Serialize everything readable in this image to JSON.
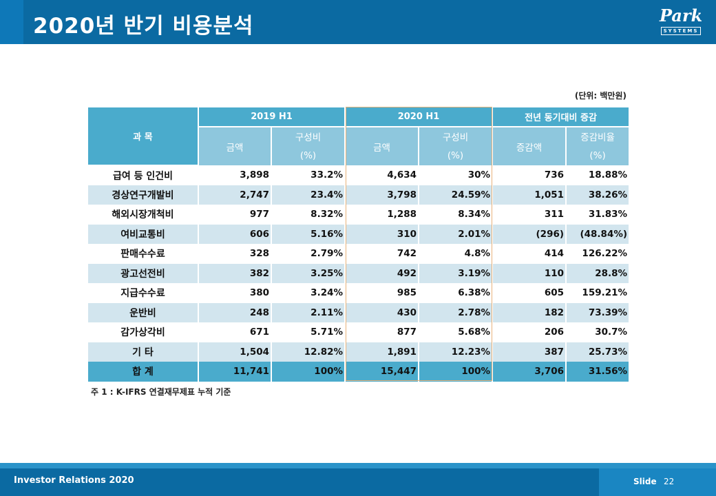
{
  "header": {
    "title": "2020년 반기 비용분석",
    "logo_text": "Park",
    "logo_sub": "SYSTEMS"
  },
  "unit_label": "(단위: 백만원)",
  "table": {
    "subject_label": "과          목",
    "groups": [
      "2019 H1",
      "2020 H1",
      "전년 동기대비 증감"
    ],
    "subheads": {
      "amount": "금액",
      "ratio_l1": "구성비",
      "ratio_l2": "(%)",
      "change": "증감액",
      "rate_l1": "증감비율",
      "rate_l2": "(%)"
    },
    "rows": [
      {
        "name": "급여 등 인건비",
        "a19": "3,898",
        "r19": "33.2%",
        "a20": "4,634",
        "r20": "30%",
        "chg": "736",
        "rate": "18.88%"
      },
      {
        "name": "경상연구개발비",
        "a19": "2,747",
        "r19": "23.4%",
        "a20": "3,798",
        "r20": "24.59%",
        "chg": "1,051",
        "rate": "38.26%"
      },
      {
        "name": "해외시장개척비",
        "a19": "977",
        "r19": "8.32%",
        "a20": "1,288",
        "r20": "8.34%",
        "chg": "311",
        "rate": "31.83%"
      },
      {
        "name": "여비교통비",
        "a19": "606",
        "r19": "5.16%",
        "a20": "310",
        "r20": "2.01%",
        "chg": "(296)",
        "rate": "(48.84%)"
      },
      {
        "name": "판매수수료",
        "a19": "328",
        "r19": "2.79%",
        "a20": "742",
        "r20": "4.8%",
        "chg": "414",
        "rate": "126.22%"
      },
      {
        "name": "광고선전비",
        "a19": "382",
        "r19": "3.25%",
        "a20": "492",
        "r20": "3.19%",
        "chg": "110",
        "rate": "28.8%"
      },
      {
        "name": "지급수수료",
        "a19": "380",
        "r19": "3.24%",
        "a20": "985",
        "r20": "6.38%",
        "chg": "605",
        "rate": "159.21%"
      },
      {
        "name": "운반비",
        "a19": "248",
        "r19": "2.11%",
        "a20": "430",
        "r20": "2.78%",
        "chg": "182",
        "rate": "73.39%"
      },
      {
        "name": "감가상각비",
        "a19": "671",
        "r19": "5.71%",
        "a20": "877",
        "r20": "5.68%",
        "chg": "206",
        "rate": "30.7%"
      },
      {
        "name": "기          타",
        "a19": "1,504",
        "r19": "12.82%",
        "a20": "1,891",
        "r20": "12.23%",
        "chg": "387",
        "rate": "25.73%"
      }
    ],
    "total": {
      "name": "합          계",
      "a19": "11,741",
      "r19": "100%",
      "a20": "15,447",
      "r20": "100%",
      "chg": "3,706",
      "rate": "31.56%"
    }
  },
  "note": "주 1 : K-IFRS 연결재무제표 누적 기준",
  "footer": {
    "left": "Investor Relations 2020",
    "slide_label": "Slide",
    "page": "22"
  }
}
